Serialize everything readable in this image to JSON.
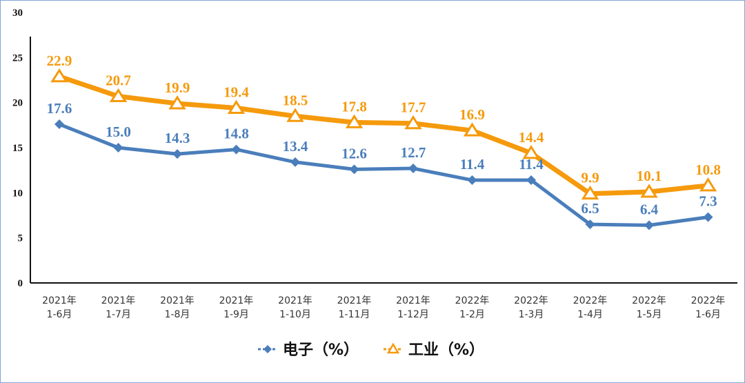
{
  "chart_data": {
    "type": "line",
    "categories": [
      [
        "2021年",
        "1-6月"
      ],
      [
        "2021年",
        "1-7月"
      ],
      [
        "2021年",
        "1-8月"
      ],
      [
        "2021年",
        "1-9月"
      ],
      [
        "2021年",
        "1-10月"
      ],
      [
        "2021年",
        "1-11月"
      ],
      [
        "2021年",
        "1-12月"
      ],
      [
        "2022年",
        "1-2月"
      ],
      [
        "2022年",
        "1-3月"
      ],
      [
        "2022年",
        "1-4月"
      ],
      [
        "2022年",
        "1-5月"
      ],
      [
        "2022年",
        "1-6月"
      ]
    ],
    "series": [
      {
        "name": "电子（%）",
        "color": "#4a7ebb",
        "marker": "diamond",
        "values": [
          17.6,
          15.0,
          14.3,
          14.8,
          13.4,
          12.6,
          12.7,
          11.4,
          11.4,
          6.5,
          6.4,
          7.3
        ]
      },
      {
        "name": "工业（%）",
        "color": "#f59a0c",
        "marker": "triangle",
        "values": [
          22.9,
          20.7,
          19.9,
          19.4,
          18.5,
          17.8,
          17.7,
          16.9,
          14.4,
          9.9,
          10.1,
          10.8
        ]
      }
    ],
    "yticks": [
      0,
      5,
      10,
      15,
      20,
      25,
      30
    ],
    "ylim": [
      0,
      30
    ],
    "grid": false,
    "legend_position": "bottom",
    "title": "",
    "xlabel": "",
    "ylabel": ""
  }
}
